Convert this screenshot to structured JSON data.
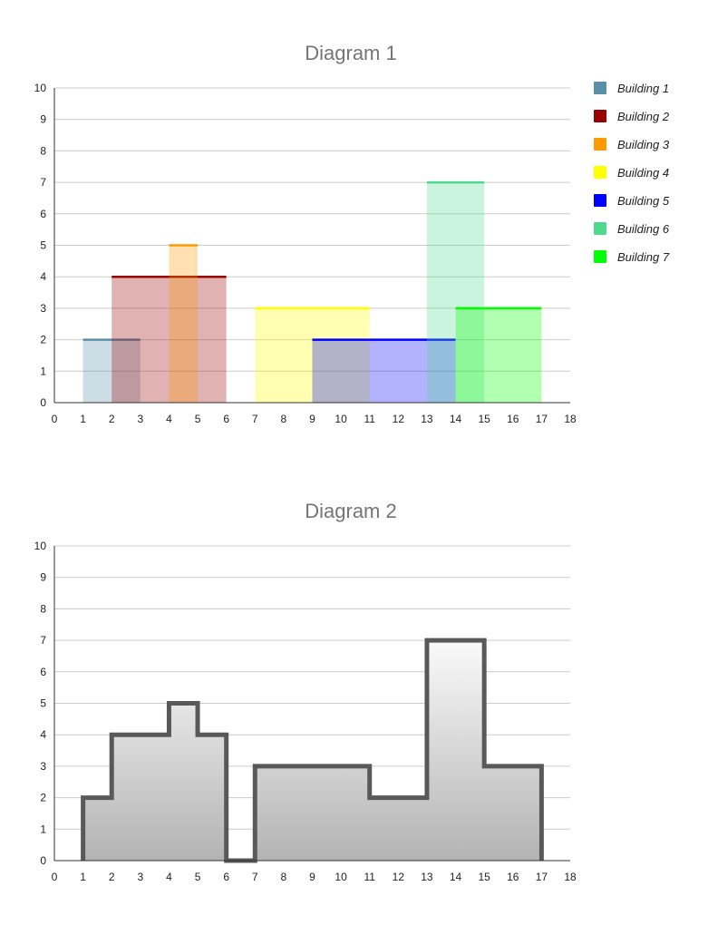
{
  "chart_data": [
    {
      "type": "area",
      "title": "Diagram 1",
      "xlim": [
        0,
        18
      ],
      "ylim": [
        0,
        10
      ],
      "xticks": [
        "0",
        "1",
        "2",
        "3",
        "4",
        "5",
        "6",
        "7",
        "8",
        "9",
        "10",
        "11",
        "12",
        "13",
        "14",
        "15",
        "16",
        "17",
        "18"
      ],
      "yticks": [
        "0",
        "1",
        "2",
        "3",
        "4",
        "5",
        "6",
        "7",
        "8",
        "9",
        "10"
      ],
      "legend_position": "right",
      "series": [
        {
          "name": "Building 1",
          "left": 1,
          "right": 3,
          "height": 2,
          "color": "#5b8fa8"
        },
        {
          "name": "Building 2",
          "left": 2,
          "right": 6,
          "height": 4,
          "color": "#990000"
        },
        {
          "name": "Building 3",
          "left": 4,
          "right": 5,
          "height": 5,
          "color": "#ff9900"
        },
        {
          "name": "Building 4",
          "left": 7,
          "right": 11,
          "height": 3,
          "color": "#ffff00"
        },
        {
          "name": "Building 5",
          "left": 9,
          "right": 14,
          "height": 2,
          "color": "#0000ff"
        },
        {
          "name": "Building 6",
          "left": 13,
          "right": 15,
          "height": 7,
          "color": "#4fd98f"
        },
        {
          "name": "Building 7",
          "left": 14,
          "right": 17,
          "height": 3,
          "color": "#00ff00"
        }
      ]
    },
    {
      "type": "line",
      "title": "Diagram 2",
      "xlim": [
        0,
        18
      ],
      "ylim": [
        0,
        10
      ],
      "xticks": [
        "0",
        "1",
        "2",
        "3",
        "4",
        "5",
        "6",
        "7",
        "8",
        "9",
        "10",
        "11",
        "12",
        "13",
        "14",
        "15",
        "16",
        "17",
        "18"
      ],
      "yticks": [
        "0",
        "1",
        "2",
        "3",
        "4",
        "5",
        "6",
        "7",
        "8",
        "9",
        "10"
      ],
      "skyline": [
        [
          1,
          2
        ],
        [
          2,
          4
        ],
        [
          4,
          5
        ],
        [
          5,
          4
        ],
        [
          6,
          0
        ],
        [
          7,
          3
        ],
        [
          11,
          2
        ],
        [
          13,
          7
        ],
        [
          15,
          3
        ],
        [
          17,
          0
        ]
      ]
    }
  ]
}
